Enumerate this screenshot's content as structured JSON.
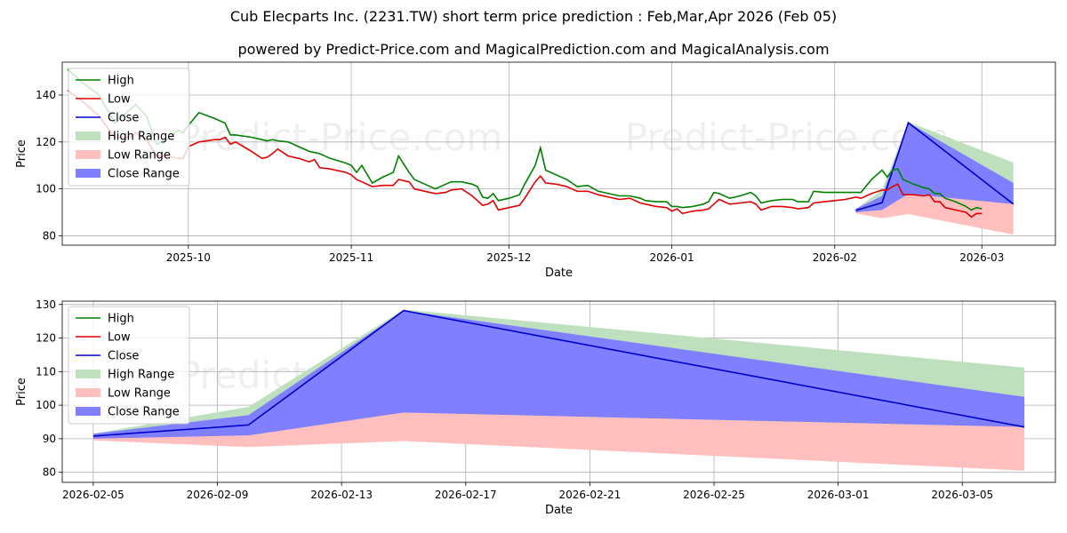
{
  "title": "Cub Elecparts Inc. (2231.TW) short term price prediction : Feb,Mar,Apr 2026 (Feb 05)",
  "subtitle": "powered by Predict-Price.com and MagicalPrediction.com and MagicalAnalysis.com",
  "watermark": "Predict-Price.com",
  "colors": {
    "high": "#008000",
    "low": "#e00000",
    "close": "#0000cc",
    "high_range": "#bfe0bf",
    "low_range": "#ffbfbf",
    "close_range": "#7f7fff"
  },
  "legend": [
    "High",
    "Low",
    "Close",
    "High Range",
    "Low Range",
    "Close Range"
  ],
  "chart_data": [
    {
      "type": "line",
      "name": "history",
      "xlabel": "Date",
      "ylabel": "Price",
      "xlim": [
        "2025-09-07",
        "2026-03-15"
      ],
      "ylim": [
        76,
        154
      ],
      "xticks": [
        "2025-10",
        "2025-11",
        "2025-12",
        "2026-01",
        "2026-02",
        "2026-03"
      ],
      "xtick_dates": [
        "2025-10-01",
        "2025-11-01",
        "2025-12-01",
        "2026-01-01",
        "2026-02-01",
        "2026-03-01"
      ],
      "yticks": [
        80,
        100,
        120,
        140
      ],
      "history": [
        {
          "date": "2025-09-08",
          "high": 151,
          "low": 142
        },
        {
          "date": "2025-09-11",
          "high": 145,
          "low": 137
        },
        {
          "date": "2025-09-14",
          "high": 140,
          "low": 131
        },
        {
          "date": "2025-09-17",
          "high": 128,
          "low": 122
        },
        {
          "date": "2025-09-20",
          "high": 134,
          "low": 122
        },
        {
          "date": "2025-09-21",
          "high": 136,
          "low": 124
        },
        {
          "date": "2025-09-23",
          "high": 131,
          "low": 121
        },
        {
          "date": "2025-09-25",
          "high": 119,
          "low": 114
        },
        {
          "date": "2025-09-27",
          "high": 121,
          "low": 114
        },
        {
          "date": "2025-09-29",
          "high": 125,
          "low": 113
        },
        {
          "date": "2025-09-30",
          "high": 124,
          "low": 113
        },
        {
          "date": "2025-10-01",
          "high": 127,
          "low": 118
        },
        {
          "date": "2025-10-03",
          "high": 132.5,
          "low": 120
        },
        {
          "date": "2025-10-06",
          "high": 130,
          "low": 121
        },
        {
          "date": "2025-10-07",
          "high": 129,
          "low": 121
        },
        {
          "date": "2025-10-08",
          "high": 128,
          "low": 122
        },
        {
          "date": "2025-10-09",
          "high": 123,
          "low": 119
        },
        {
          "date": "2025-10-10",
          "high": 123,
          "low": 120
        },
        {
          "date": "2025-10-13",
          "high": 122,
          "low": 116
        },
        {
          "date": "2025-10-15",
          "high": 121,
          "low": 113
        },
        {
          "date": "2025-10-16",
          "high": 120.5,
          "low": 113.5
        },
        {
          "date": "2025-10-17",
          "high": 121,
          "low": 115
        },
        {
          "date": "2025-10-18",
          "high": 120.5,
          "low": 117
        },
        {
          "date": "2025-10-20",
          "high": 120,
          "low": 114
        },
        {
          "date": "2025-10-22",
          "high": 118,
          "low": 113
        },
        {
          "date": "2025-10-24",
          "high": 116,
          "low": 111.5
        },
        {
          "date": "2025-10-25",
          "high": 115.5,
          "low": 112.5
        },
        {
          "date": "2025-10-26",
          "high": 115,
          "low": 109
        },
        {
          "date": "2025-10-28",
          "high": 113,
          "low": 108.5
        },
        {
          "date": "2025-10-31",
          "high": 111,
          "low": 107
        },
        {
          "date": "2025-11-01",
          "high": 110,
          "low": 106
        },
        {
          "date": "2025-11-02",
          "high": 107,
          "low": 104
        },
        {
          "date": "2025-11-03",
          "high": 110,
          "low": 103
        },
        {
          "date": "2025-11-05",
          "high": 102.5,
          "low": 101
        },
        {
          "date": "2025-11-07",
          "high": 105,
          "low": 101.5
        },
        {
          "date": "2025-11-09",
          "high": 107,
          "low": 101.5
        },
        {
          "date": "2025-11-10",
          "high": 114,
          "low": 104
        },
        {
          "date": "2025-11-12",
          "high": 107,
          "low": 103
        },
        {
          "date": "2025-11-13",
          "high": 104,
          "low": 100
        },
        {
          "date": "2025-11-15",
          "high": 102,
          "low": 99
        },
        {
          "date": "2025-11-17",
          "high": 100,
          "low": 98
        },
        {
          "date": "2025-11-19",
          "high": 102,
          "low": 98.5
        },
        {
          "date": "2025-11-20",
          "high": 103,
          "low": 99.5
        },
        {
          "date": "2025-11-22",
          "high": 103,
          "low": 100
        },
        {
          "date": "2025-11-24",
          "high": 102,
          "low": 97
        },
        {
          "date": "2025-11-25",
          "high": 101,
          "low": 95
        },
        {
          "date": "2025-11-26",
          "high": 96.5,
          "low": 93
        },
        {
          "date": "2025-11-27",
          "high": 96,
          "low": 93.5
        },
        {
          "date": "2025-11-28",
          "high": 98,
          "low": 95
        },
        {
          "date": "2025-11-29",
          "high": 95,
          "low": 91
        },
        {
          "date": "2025-12-01",
          "high": 96,
          "low": 92
        },
        {
          "date": "2025-12-03",
          "high": 97.5,
          "low": 93
        },
        {
          "date": "2025-12-04",
          "high": 102,
          "low": 96
        },
        {
          "date": "2025-12-06",
          "high": 110,
          "low": 103
        },
        {
          "date": "2025-12-07",
          "high": 117.5,
          "low": 105.5
        },
        {
          "date": "2025-12-08",
          "high": 108,
          "low": 102.5
        },
        {
          "date": "2025-12-10",
          "high": 106,
          "low": 102
        },
        {
          "date": "2025-12-12",
          "high": 104,
          "low": 101
        },
        {
          "date": "2025-12-14",
          "high": 101,
          "low": 99
        },
        {
          "date": "2025-12-16",
          "high": 101.5,
          "low": 99
        },
        {
          "date": "2025-12-18",
          "high": 99,
          "low": 97.5
        },
        {
          "date": "2025-12-20",
          "high": 98,
          "low": 96.5
        },
        {
          "date": "2025-12-22",
          "high": 97,
          "low": 95.5
        },
        {
          "date": "2025-12-24",
          "high": 97,
          "low": 96
        },
        {
          "date": "2025-12-26",
          "high": 96,
          "low": 94
        },
        {
          "date": "2025-12-27",
          "high": 95,
          "low": 93.5
        },
        {
          "date": "2025-12-29",
          "high": 94.5,
          "low": 92.5
        },
        {
          "date": "2025-12-31",
          "high": 94.5,
          "low": 92
        },
        {
          "date": "2026-01-01",
          "high": 92.5,
          "low": 90.5
        },
        {
          "date": "2026-01-02",
          "high": 92.5,
          "low": 91.5
        },
        {
          "date": "2026-01-03",
          "high": 92,
          "low": 89.5
        },
        {
          "date": "2026-01-05",
          "high": 92.5,
          "low": 90.5
        },
        {
          "date": "2026-01-07",
          "high": 93.5,
          "low": 91
        },
        {
          "date": "2026-01-08",
          "high": 94.5,
          "low": 91.5
        },
        {
          "date": "2026-01-09",
          "high": 98.5,
          "low": 93.5
        },
        {
          "date": "2026-01-10",
          "high": 98,
          "low": 95.5
        },
        {
          "date": "2026-01-12",
          "high": 96,
          "low": 93.5
        },
        {
          "date": "2026-01-14",
          "high": 97,
          "low": 94
        },
        {
          "date": "2026-01-16",
          "high": 98.5,
          "low": 94.5
        },
        {
          "date": "2026-01-17",
          "high": 97,
          "low": 93.5
        },
        {
          "date": "2026-01-18",
          "high": 94,
          "low": 91
        },
        {
          "date": "2026-01-20",
          "high": 95,
          "low": 92.5
        },
        {
          "date": "2026-01-22",
          "high": 95.5,
          "low": 92.5
        },
        {
          "date": "2026-01-24",
          "high": 95.5,
          "low": 92
        },
        {
          "date": "2026-01-25",
          "high": 94.5,
          "low": 91.5
        },
        {
          "date": "2026-01-27",
          "high": 94.5,
          "low": 92
        },
        {
          "date": "2026-01-28",
          "high": 99,
          "low": 94
        },
        {
          "date": "2026-01-30",
          "high": 98.5,
          "low": 94.5
        },
        {
          "date": "2026-02-01",
          "high": 98.5,
          "low": 95
        },
        {
          "date": "2026-02-03",
          "high": 98.5,
          "low": 95.5
        },
        {
          "date": "2026-02-05",
          "high": 98.5,
          "low": 96.5
        },
        {
          "date": "2026-02-06",
          "high": 98.5,
          "low": 96
        },
        {
          "date": "2026-02-08",
          "high": 104,
          "low": 98
        },
        {
          "date": "2026-02-10",
          "high": 108,
          "low": 99.5
        },
        {
          "date": "2026-02-11",
          "high": 105,
          "low": 99.5
        },
        {
          "date": "2026-02-12",
          "high": 108,
          "low": 101
        },
        {
          "date": "2026-02-13",
          "high": 108.5,
          "low": 102
        },
        {
          "date": "2026-02-14",
          "high": 104,
          "low": 97.5
        },
        {
          "date": "2026-02-16",
          "high": 102,
          "low": 97.5
        },
        {
          "date": "2026-02-18",
          "high": 100.5,
          "low": 97
        },
        {
          "date": "2026-02-19",
          "high": 100,
          "low": 97.5
        },
        {
          "date": "2026-02-20",
          "high": 98,
          "low": 94.5
        },
        {
          "date": "2026-02-21",
          "high": 98,
          "low": 94.5
        },
        {
          "date": "2026-02-22",
          "high": 96,
          "low": 92
        },
        {
          "date": "2026-02-24",
          "high": 94.5,
          "low": 91
        },
        {
          "date": "2026-02-26",
          "high": 92.5,
          "low": 90
        },
        {
          "date": "2026-02-27",
          "high": 91,
          "low": 88
        },
        {
          "date": "2026-02-28",
          "high": 92,
          "low": 89.5
        },
        {
          "date": "2026-03-01",
          "high": 91.5,
          "low": 89.5
        }
      ]
    },
    {
      "type": "area",
      "name": "prediction",
      "xlabel": "Date",
      "ylabel": "Price",
      "xlim": [
        "2026-02-04",
        "2026-03-08"
      ],
      "ylim": [
        77,
        131
      ],
      "xticks": [
        "2026-02-05",
        "2026-02-09",
        "2026-02-13",
        "2026-02-17",
        "2026-02-21",
        "2026-02-25",
        "2026-03-01",
        "2026-03-05"
      ],
      "yticks": [
        80,
        90,
        100,
        110,
        120,
        130
      ],
      "dates": [
        "2026-02-05",
        "2026-02-10",
        "2026-02-15",
        "2026-03-07"
      ],
      "high_range": [
        [
          91.5,
          91
        ],
        [
          99.5,
          91
        ],
        [
          128.5,
          97.5
        ],
        [
          111.2,
          93.5
        ]
      ],
      "low_range": [
        [
          90.5,
          89.5
        ],
        [
          91,
          87.5
        ],
        [
          97.8,
          89.3
        ],
        [
          93.5,
          80.5
        ]
      ],
      "close_range": [
        [
          91.5,
          90
        ],
        [
          97,
          91
        ],
        [
          128.2,
          97.8
        ],
        [
          102.5,
          93.5
        ]
      ],
      "close": [
        90.8,
        94.1,
        128.2,
        93.5
      ]
    }
  ]
}
